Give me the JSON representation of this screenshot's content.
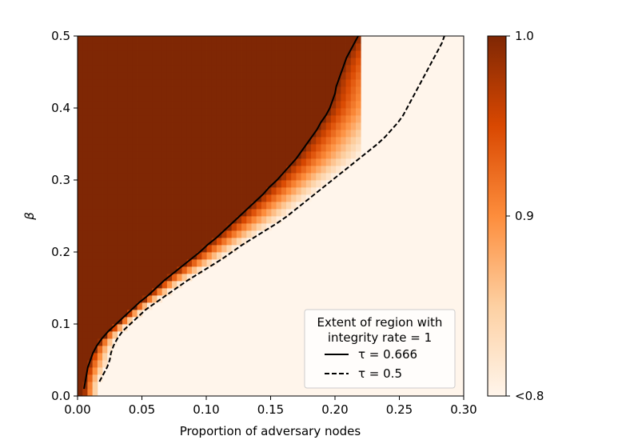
{
  "chart_data": {
    "type": "heatmap",
    "title": "",
    "xlabel": "Proportion of adversary nodes",
    "ylabel": "β",
    "xlim": [
      0.0,
      0.3
    ],
    "ylim": [
      0.0,
      0.5
    ],
    "x_ticks": [
      "0.00",
      "0.05",
      "0.10",
      "0.15",
      "0.20",
      "0.25",
      "0.30"
    ],
    "y_ticks": [
      "0.0",
      "0.1",
      "0.2",
      "0.3",
      "0.4",
      "0.5"
    ],
    "heatmap": {
      "x_cells": 57,
      "y_cells": 50,
      "x_range": [
        0.0,
        0.22
      ],
      "value_meaning": "integrity rate",
      "description_of_fill": "value 1.0 in upper-left region bounded by tau=0.666 boundary, decreasing through orange band to <0.8 beyond tau=0.5 boundary"
    },
    "colorbar": {
      "ticks": [
        "1.0",
        "0.9",
        "<0.8"
      ],
      "range": [
        0.8,
        1.0
      ],
      "colors": [
        "#fff5eb",
        "#fdd0a2",
        "#fd8d3c",
        "#d94801",
        "#7f2704"
      ]
    },
    "series": [
      {
        "name": "τ = 0.666",
        "style": "solid",
        "points": [
          [
            0.005,
            0.01
          ],
          [
            0.006,
            0.02
          ],
          [
            0.007,
            0.03
          ],
          [
            0.008,
            0.04
          ],
          [
            0.01,
            0.05
          ],
          [
            0.012,
            0.06
          ],
          [
            0.015,
            0.07
          ],
          [
            0.019,
            0.08
          ],
          [
            0.024,
            0.09
          ],
          [
            0.03,
            0.1
          ],
          [
            0.036,
            0.11
          ],
          [
            0.042,
            0.12
          ],
          [
            0.048,
            0.13
          ],
          [
            0.055,
            0.14
          ],
          [
            0.061,
            0.15
          ],
          [
            0.067,
            0.16
          ],
          [
            0.074,
            0.17
          ],
          [
            0.081,
            0.18
          ],
          [
            0.088,
            0.19
          ],
          [
            0.095,
            0.2
          ],
          [
            0.101,
            0.21
          ],
          [
            0.108,
            0.22
          ],
          [
            0.114,
            0.23
          ],
          [
            0.12,
            0.24
          ],
          [
            0.126,
            0.25
          ],
          [
            0.132,
            0.26
          ],
          [
            0.138,
            0.27
          ],
          [
            0.144,
            0.28
          ],
          [
            0.149,
            0.29
          ],
          [
            0.155,
            0.3
          ],
          [
            0.16,
            0.31
          ],
          [
            0.165,
            0.32
          ],
          [
            0.17,
            0.33
          ],
          [
            0.174,
            0.34
          ],
          [
            0.178,
            0.35
          ],
          [
            0.182,
            0.36
          ],
          [
            0.186,
            0.37
          ],
          [
            0.189,
            0.38
          ],
          [
            0.193,
            0.39
          ],
          [
            0.196,
            0.4
          ],
          [
            0.198,
            0.41
          ],
          [
            0.2,
            0.42
          ],
          [
            0.201,
            0.43
          ],
          [
            0.203,
            0.44
          ],
          [
            0.205,
            0.45
          ],
          [
            0.207,
            0.46
          ],
          [
            0.209,
            0.47
          ],
          [
            0.212,
            0.48
          ],
          [
            0.215,
            0.49
          ],
          [
            0.218,
            0.5
          ]
        ]
      },
      {
        "name": "τ = 0.5",
        "style": "dashed",
        "points": [
          [
            0.017,
            0.02
          ],
          [
            0.02,
            0.03
          ],
          [
            0.023,
            0.04
          ],
          [
            0.025,
            0.05
          ],
          [
            0.026,
            0.06
          ],
          [
            0.028,
            0.07
          ],
          [
            0.031,
            0.08
          ],
          [
            0.035,
            0.09
          ],
          [
            0.041,
            0.1
          ],
          [
            0.047,
            0.11
          ],
          [
            0.053,
            0.12
          ],
          [
            0.061,
            0.13
          ],
          [
            0.069,
            0.14
          ],
          [
            0.077,
            0.15
          ],
          [
            0.085,
            0.16
          ],
          [
            0.094,
            0.17
          ],
          [
            0.103,
            0.18
          ],
          [
            0.112,
            0.19
          ],
          [
            0.12,
            0.2
          ],
          [
            0.128,
            0.21
          ],
          [
            0.137,
            0.22
          ],
          [
            0.146,
            0.23
          ],
          [
            0.155,
            0.24
          ],
          [
            0.163,
            0.25
          ],
          [
            0.17,
            0.26
          ],
          [
            0.177,
            0.27
          ],
          [
            0.184,
            0.28
          ],
          [
            0.191,
            0.29
          ],
          [
            0.198,
            0.3
          ],
          [
            0.205,
            0.31
          ],
          [
            0.212,
            0.32
          ],
          [
            0.219,
            0.33
          ],
          [
            0.226,
            0.34
          ],
          [
            0.233,
            0.35
          ],
          [
            0.239,
            0.36
          ],
          [
            0.244,
            0.37
          ],
          [
            0.249,
            0.38
          ],
          [
            0.253,
            0.39
          ],
          [
            0.256,
            0.4
          ],
          [
            0.259,
            0.41
          ],
          [
            0.262,
            0.42
          ],
          [
            0.265,
            0.43
          ],
          [
            0.268,
            0.44
          ],
          [
            0.271,
            0.45
          ],
          [
            0.274,
            0.46
          ],
          [
            0.277,
            0.47
          ],
          [
            0.28,
            0.48
          ],
          [
            0.283,
            0.49
          ],
          [
            0.285,
            0.5
          ]
        ]
      }
    ],
    "legend": {
      "title": "Extent of region with integrity rate = 1",
      "title_line1": "Extent of region with",
      "title_line2": "integrity rate = 1",
      "entries": [
        "τ = 0.666",
        "τ = 0.5"
      ],
      "position": "bottom-right"
    }
  }
}
